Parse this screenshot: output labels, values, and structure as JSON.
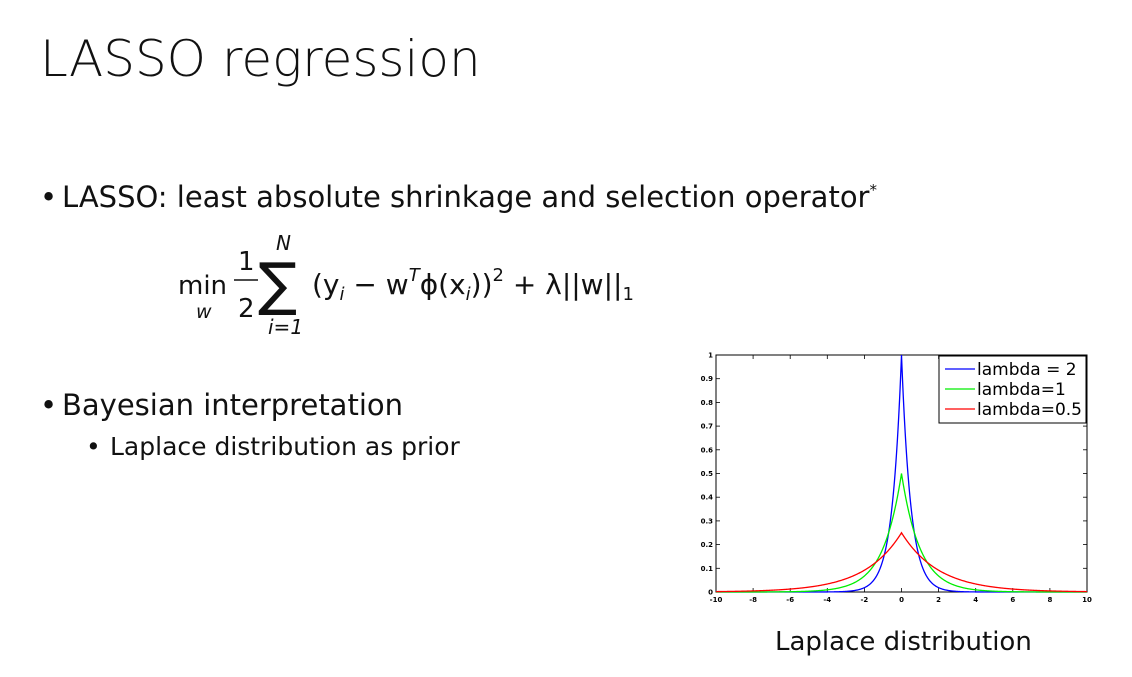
{
  "slide": {
    "title": "LASSO regression",
    "bullet1": "LASSO: least absolute shrinkage and selection operator",
    "bullet1_mark": "*",
    "bullet2": "Bayesian interpretation",
    "sub_bullet": "Laplace distribution as prior",
    "caption": "Laplace distribution"
  },
  "formula": {
    "min": "min",
    "min_sub": "w",
    "half_num": "1",
    "half_den": "2",
    "sum_upper": "N",
    "sum_lower": "i=1",
    "body": "(y",
    "body_sub": "i",
    "minus_w": " − w",
    "w_sup": "T",
    "phi": "ϕ(x",
    "phi_sub": "i",
    "close": "))",
    "square": "2",
    "reg": " + λ||w||",
    "reg_sub": "1"
  },
  "chart_data": {
    "type": "line",
    "xlim": [
      -10,
      10
    ],
    "ylim": [
      0,
      1
    ],
    "x_ticks": [
      -10,
      -8,
      -6,
      -4,
      -2,
      0,
      2,
      4,
      6,
      8,
      10
    ],
    "y_ticks": [
      0,
      0.1,
      0.2,
      0.3,
      0.4,
      0.5,
      0.6,
      0.7,
      0.8,
      0.9,
      1
    ],
    "legend_position": "top-right",
    "grid": false,
    "series": [
      {
        "name": "lambda = 2",
        "lambda": 2,
        "color": "#0000ff"
      },
      {
        "name": "lambda=1",
        "lambda": 1,
        "color": "#00ee00"
      },
      {
        "name": "lambda=0.5",
        "lambda": 0.5,
        "color": "#ff0000"
      }
    ],
    "function": "p(x) = (lambda/2) * exp(-lambda*|x|)"
  }
}
